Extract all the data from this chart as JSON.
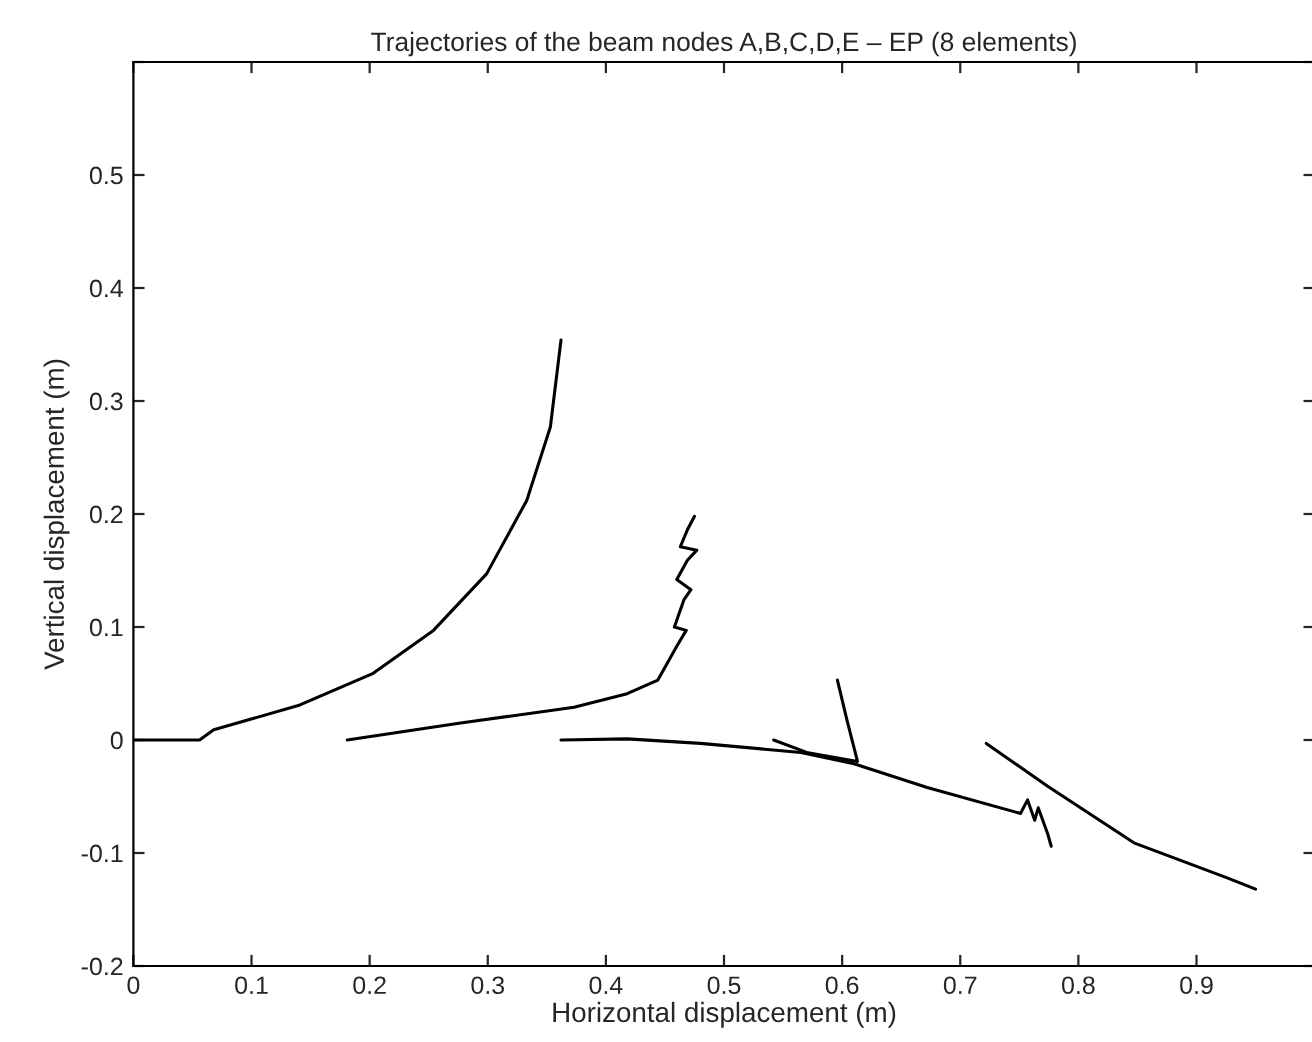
{
  "chart_data": {
    "type": "line",
    "title": "Trajectories of the beam nodes A,B,C,D,E – EP (8 elements)",
    "xlabel": "Horizontal displacement (m)",
    "ylabel": "Vertical displacement (m)",
    "xlim": [
      0,
      1
    ],
    "ylim": [
      -0.2,
      0.6
    ],
    "xticks": [
      0,
      0.1,
      0.2,
      0.3,
      0.4,
      0.5,
      0.6,
      0.7,
      0.8,
      0.9
    ],
    "yticks": [
      -0.2,
      -0.1,
      0,
      0.1,
      0.2,
      0.3,
      0.4,
      0.5,
      {
        "value": 0.6,
        "label": null
      }
    ],
    "grid": false,
    "legend": false,
    "marker": "none",
    "line_style": "solid",
    "series": [
      {
        "color": "#000000",
        "x": [
          0,
          0.056,
          0.068,
          0.141,
          0.203,
          0.254,
          0.299,
          0.333,
          0.353,
          0.362
        ],
        "values": [
          0,
          0,
          0.009,
          0.031,
          0.059,
          0.097,
          0.147,
          0.212,
          0.277,
          0.354
        ]
      },
      {
        "color": "#000000",
        "x": [
          0.181,
          0.277,
          0.373,
          0.418,
          0.444,
          0.46,
          0.468,
          0.458,
          0.466,
          0.472,
          0.46,
          0.469,
          0.477,
          0.463,
          0.469,
          0.475
        ],
        "values": [
          0,
          0.015,
          0.029,
          0.041,
          0.053,
          0.083,
          0.097,
          0.1,
          0.124,
          0.133,
          0.142,
          0.159,
          0.168,
          0.171,
          0.186,
          0.198
        ]
      },
      {
        "color": "#000000",
        "x": [
          0.362,
          0.418,
          0.48,
          0.565,
          0.61,
          0.672,
          0.751,
          0.757,
          0.763,
          0.766,
          0.774,
          0.777
        ],
        "values": [
          0,
          0.001,
          -0.003,
          -0.011,
          -0.021,
          -0.042,
          -0.065,
          -0.053,
          -0.071,
          -0.06,
          -0.083,
          -0.094
        ]
      },
      {
        "color": "#000000",
        "x": [
          0.596,
          0.604,
          0.613,
          0.57,
          0.542
        ],
        "values": [
          0.053,
          0.018,
          -0.019,
          -0.011,
          0
        ]
      },
      {
        "color": "#000000",
        "x": [
          0.722,
          0.774,
          0.847,
          0.926,
          0.95
        ],
        "values": [
          -0.003,
          -0.041,
          -0.091,
          -0.122,
          -0.132
        ]
      }
    ]
  }
}
